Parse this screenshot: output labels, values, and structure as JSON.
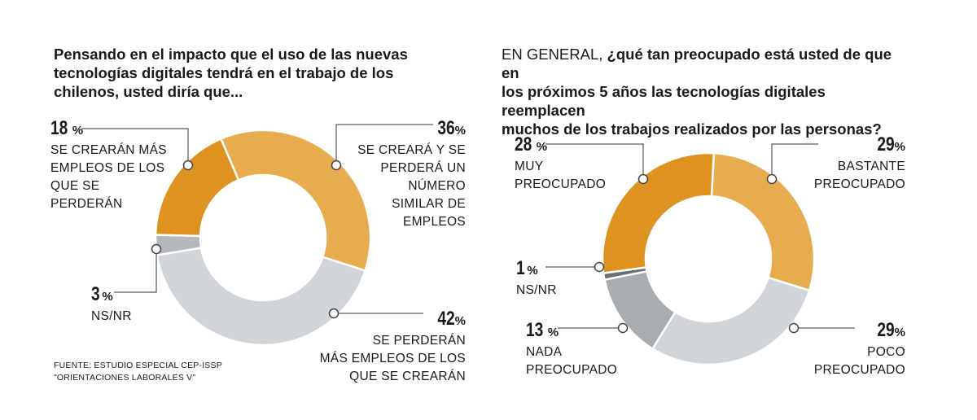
{
  "chart_data": [
    {
      "type": "pie",
      "title": "Pensando en el impacto que el uso de las nuevas\ntecnologías digitales tendrá en el trabajo de los\nchilenos, usted diría que...",
      "slices": [
        {
          "value": 36,
          "pct_label": "36",
          "label": "SE CREARÁ Y SE\nPERDERÁ UN\nNÚMERO\nSIMILAR DE\nEMPLEOS",
          "color": "#e6ac4e"
        },
        {
          "value": 42,
          "pct_label": "42",
          "label": "SE PERDERÁN\nMÁS EMPLEOS DE LOS\nQUE SE CREARÁN",
          "color": "#d1d4d8"
        },
        {
          "value": 3,
          "pct_label": "3",
          "label": "NS/NR",
          "color": "#b4b7bc"
        },
        {
          "value": 18,
          "pct_label": "18",
          "label": "SE CREARÁN MÁS\nEMPLEOS DE LOS\nQUE SE\nPERDERÁN",
          "color": "#de921f"
        }
      ]
    },
    {
      "type": "pie",
      "title_prefix": "EN GENERAL, ",
      "title": "¿qué tan preocupado está usted de que en\nlos próximos 5 años las tecnologías digitales reemplacen\nmuchos de los trabajos realizados por las personas?",
      "slices": [
        {
          "value": 29,
          "pct_label": "29",
          "label": "BASTANTE\nPREOCUPADO",
          "color": "#e6ac4e"
        },
        {
          "value": 29,
          "pct_label": "29",
          "label": "POCO\nPREOCUPADO",
          "color": "#d1d4d8"
        },
        {
          "value": 13,
          "pct_label": "13",
          "label": "NADA\nPREOCUPADO",
          "color": "#a9acb1"
        },
        {
          "value": 1,
          "pct_label": "1",
          "label": "NS/NR",
          "color": "#6d6f73"
        },
        {
          "value": 28,
          "pct_label": "28",
          "label": "MUY\nPREOCUPADO",
          "color": "#de921f"
        }
      ]
    }
  ],
  "percent_symbol": "%",
  "source": "FUENTE: ESTUDIO ESPECIAL CEP-ISSP\n\"ORIENTACIONES LABORALES V\""
}
